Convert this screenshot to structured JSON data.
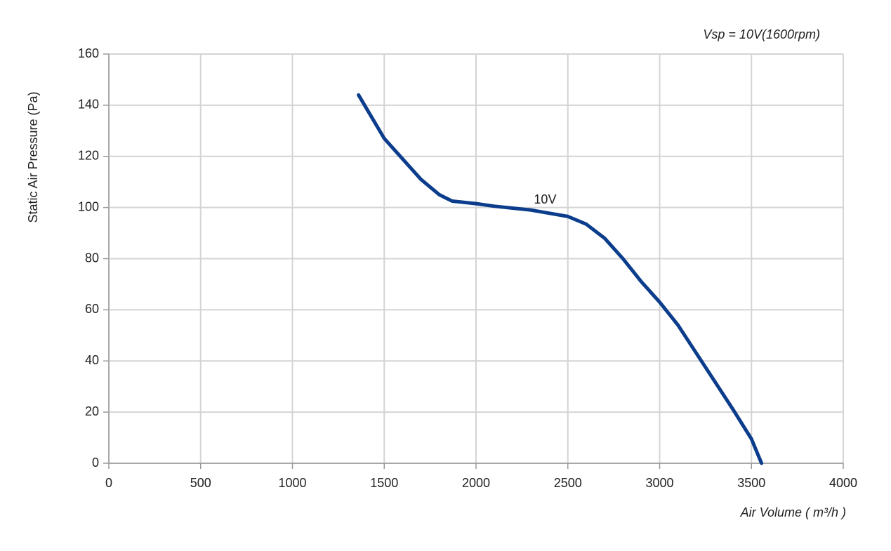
{
  "chart_data": {
    "type": "line",
    "subtitle": "Vsp = 10V(1600rpm)",
    "x_label": "Air Volume ( m³/h )",
    "y_label": "Static Air Pressure  (Pa)",
    "series": [
      {
        "name": "10V",
        "color": "#0b3d8c",
        "x": [
          1360,
          1500,
          1600,
          1700,
          1800,
          1870,
          2000,
          2100,
          2300,
          2500,
          2600,
          2700,
          2800,
          2900,
          3000,
          3100,
          3200,
          3300,
          3400,
          3500,
          3555
        ],
        "values": [
          144,
          127,
          119,
          111,
          105,
          102.5,
          101.5,
          100.5,
          99,
          96.5,
          93.5,
          88,
          80,
          71,
          63,
          54,
          43,
          32,
          21,
          9.5,
          0
        ]
      }
    ],
    "xlim": [
      0,
      4000
    ],
    "xticks": [
      0,
      500,
      1000,
      1500,
      2000,
      2500,
      3000,
      3500,
      4000
    ],
    "ylim": [
      0,
      160
    ],
    "yticks": [
      0,
      20,
      40,
      60,
      80,
      100,
      120,
      140,
      160
    ],
    "grid": true
  }
}
